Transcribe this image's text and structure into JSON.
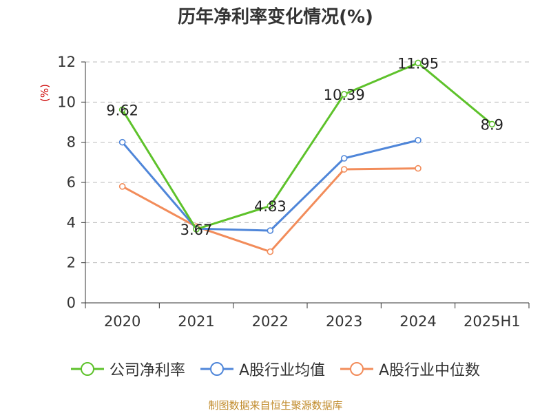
{
  "chart_data": {
    "type": "line",
    "title": "历年净利率变化情况(%)",
    "ylabel": "(%)",
    "categories": [
      "2020",
      "2021",
      "2022",
      "2023",
      "2024",
      "2025H1"
    ],
    "ylim": [
      0,
      12
    ],
    "yticks": [
      0,
      2,
      4,
      6,
      8,
      10,
      12
    ],
    "grid": "horizontal-dashed",
    "legend_position": "bottom",
    "series": [
      {
        "name": "公司净利率",
        "color": "#5ec22b",
        "values": [
          9.62,
          3.67,
          4.83,
          10.39,
          11.95,
          8.9
        ],
        "labels": [
          "9.62",
          "3.67",
          "4.83",
          "10.39",
          "11.95",
          "8.9"
        ]
      },
      {
        "name": "A股行业均值",
        "color": "#4f86d9",
        "values": [
          8.0,
          3.7,
          3.6,
          7.2,
          8.1,
          null
        ]
      },
      {
        "name": "A股行业中位数",
        "color": "#f28c5a",
        "values": [
          5.8,
          3.8,
          2.55,
          6.65,
          6.7,
          null
        ]
      }
    ]
  },
  "footer": {
    "source": "制图数据来自恒生聚源数据库"
  }
}
